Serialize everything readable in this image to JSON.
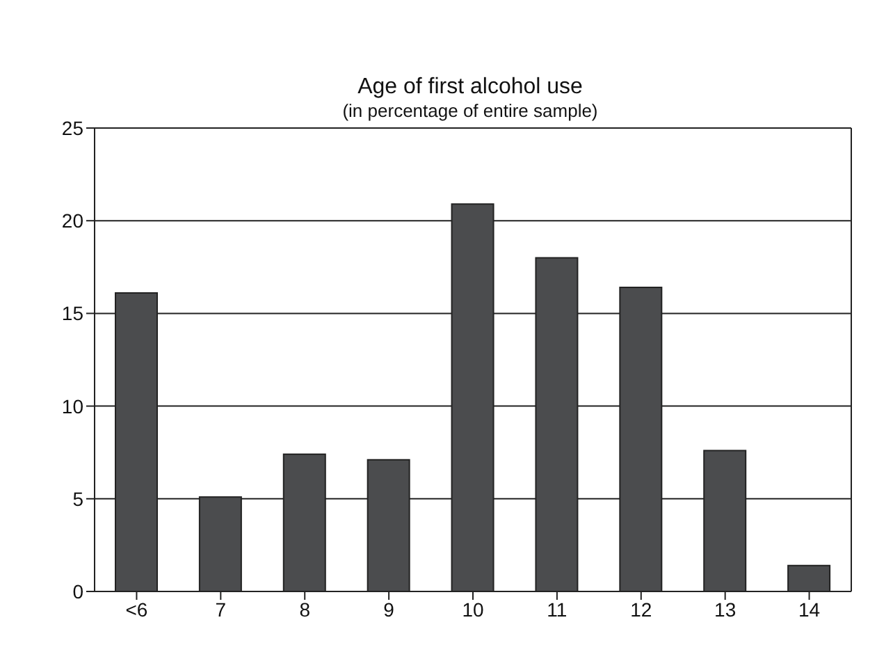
{
  "chart_data": {
    "type": "bar",
    "title": "Age of first alcohol use",
    "subtitle": "(in percentage of entire sample)",
    "categories": [
      "<6",
      "7",
      "8",
      "9",
      "10",
      "11",
      "12",
      "13",
      "14"
    ],
    "values": [
      16.1,
      5.1,
      7.4,
      7.1,
      20.9,
      18.0,
      16.4,
      7.6,
      1.4
    ],
    "color": "#4b4c4e",
    "ylim": [
      0,
      25
    ],
    "yticks": [
      0,
      5,
      10,
      15,
      20,
      25
    ],
    "grid": "y"
  }
}
